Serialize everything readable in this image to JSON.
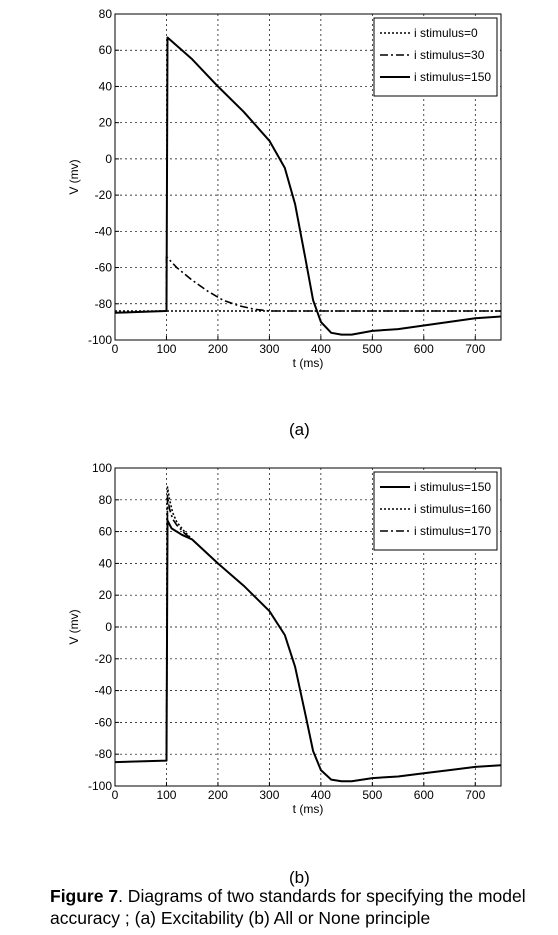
{
  "chart_data": [
    {
      "type": "line",
      "panel": "(a)",
      "xlabel": "t (ms)",
      "ylabel": "V (mv)",
      "xlim": [
        0,
        750
      ],
      "ylim": [
        -100,
        80
      ],
      "xticks": [
        0,
        100,
        200,
        300,
        400,
        500,
        600,
        700
      ],
      "yticks": [
        -100,
        -80,
        -60,
        -40,
        -20,
        0,
        20,
        40,
        60,
        80
      ],
      "grid": true,
      "legend_position": "top-right",
      "series": [
        {
          "name": "i stimulus=0",
          "style": "dotted",
          "x": [
            0,
            750
          ],
          "y": [
            -84,
            -84
          ]
        },
        {
          "name": "i stimulus=30",
          "style": "dashdot",
          "x": [
            100,
            100,
            120,
            150,
            180,
            210,
            240,
            270,
            300,
            350,
            400,
            500,
            600,
            750
          ],
          "y": [
            -84,
            -54,
            -60,
            -67,
            -73,
            -78,
            -81,
            -83,
            -84,
            -84,
            -84,
            -84,
            -84,
            -84
          ]
        },
        {
          "name": "i stimulus=150",
          "style": "solid",
          "x": [
            0,
            99,
            100,
            102,
            150,
            200,
            250,
            300,
            330,
            350,
            370,
            385,
            400,
            420,
            440,
            460,
            500,
            550,
            600,
            650,
            700,
            750
          ],
          "y": [
            -85,
            -84,
            -84,
            67,
            55,
            40,
            26,
            10,
            -5,
            -25,
            -55,
            -78,
            -90,
            -96,
            -97,
            -97,
            -95,
            -94,
            -92,
            -90,
            -88,
            -87
          ]
        }
      ]
    },
    {
      "type": "line",
      "panel": "(b)",
      "xlabel": "t (ms)",
      "ylabel": "V (mv)",
      "xlim": [
        0,
        750
      ],
      "ylim": [
        -100,
        100
      ],
      "xticks": [
        0,
        100,
        200,
        300,
        400,
        500,
        600,
        700
      ],
      "yticks": [
        -100,
        -80,
        -60,
        -40,
        -20,
        0,
        20,
        40,
        60,
        80,
        100
      ],
      "grid": true,
      "legend_position": "top-right",
      "series": [
        {
          "name": "i stimulus=150",
          "style": "solid",
          "x": [
            0,
            99,
            100,
            102,
            110,
            130,
            150,
            200,
            250,
            300,
            330,
            350,
            370,
            385,
            400,
            420,
            440,
            460,
            500,
            550,
            600,
            650,
            700,
            750
          ],
          "y": [
            -85,
            -84,
            -84,
            67,
            62,
            58,
            55,
            40,
            26,
            10,
            -5,
            -25,
            -55,
            -78,
            -90,
            -96,
            -97,
            -97,
            -95,
            -94,
            -92,
            -90,
            -88,
            -87
          ]
        },
        {
          "name": "i stimulus=160",
          "style": "dotted",
          "x": [
            100,
            102,
            106,
            112,
            120,
            135,
            150
          ],
          "y": [
            -84,
            88,
            80,
            72,
            66,
            60,
            55
          ]
        },
        {
          "name": "i stimulus=170",
          "style": "dashdot",
          "x": [
            100,
            102,
            106,
            112,
            120,
            135,
            150
          ],
          "y": [
            -84,
            82,
            74,
            68,
            64,
            59,
            55
          ]
        }
      ]
    }
  ],
  "panel_labels": {
    "a": "(a)",
    "b": "(b)"
  },
  "caption": {
    "label": "Figure 7",
    "text": ".  Diagrams of two standards for specifying the model accuracy ; (a) Excitability (b) All or None principle"
  }
}
